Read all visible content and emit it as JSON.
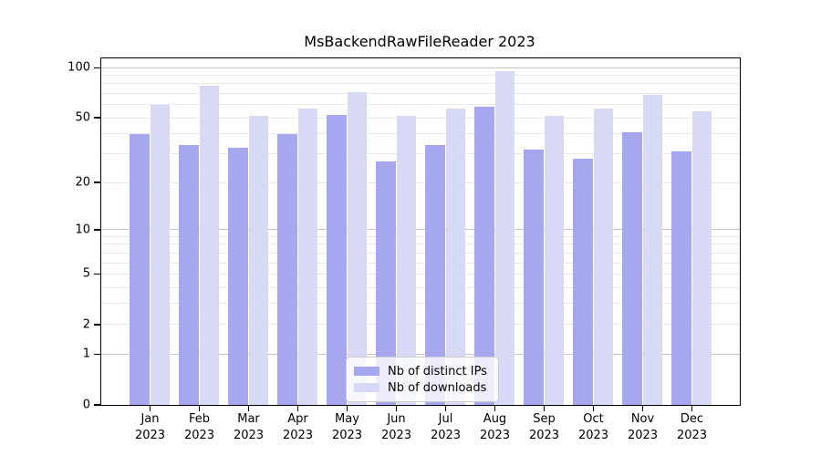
{
  "title": "MsBackendRawFileReader 2023",
  "colors": {
    "distinct_ips_bar": "#a7a7f0",
    "downloads_bar": "#d8d8f7",
    "axis": "#000000",
    "gridline_decade": "#c6c6c6",
    "gridline_light": "#eaeaea",
    "legend_border": "#cccccc"
  },
  "legend": {
    "position": "lower center",
    "items": [
      {
        "label": "Nb of distinct IPs",
        "color": "#a7a7f0"
      },
      {
        "label": "Nb of downloads",
        "color": "#d8d8f7"
      }
    ]
  },
  "chart_data": {
    "type": "bar",
    "title": "MsBackendRawFileReader 2023",
    "categories": [
      "Jan 2023",
      "Feb 2023",
      "Mar 2023",
      "Apr 2023",
      "May 2023",
      "Jun 2023",
      "Jul 2023",
      "Aug 2023",
      "Sep 2023",
      "Oct 2023",
      "Nov 2023",
      "Dec 2023"
    ],
    "series": [
      {
        "name": "Nb of distinct IPs",
        "color": "#a7a7f0",
        "values": [
          40,
          34,
          33,
          40,
          52,
          27,
          34,
          58,
          32,
          28,
          41,
          31
        ]
      },
      {
        "name": "Nb of downloads",
        "color": "#d8d8f7",
        "values": [
          60,
          78,
          51,
          57,
          71,
          51,
          57,
          95,
          51,
          57,
          69,
          55
        ]
      }
    ],
    "xlabel": "",
    "ylabel": "",
    "yscale": "log1p",
    "ylim": [
      0,
      114
    ],
    "yticks": [
      0,
      1,
      2,
      5,
      10,
      20,
      50,
      100
    ],
    "gridlines": {
      "decade": [
        1,
        10,
        100
      ],
      "light": [
        2,
        3,
        4,
        5,
        6,
        7,
        8,
        9,
        20,
        30,
        40,
        50,
        60,
        70,
        80,
        90
      ]
    },
    "grid": "horizontal, behind bars",
    "legend_position": "lower center"
  }
}
